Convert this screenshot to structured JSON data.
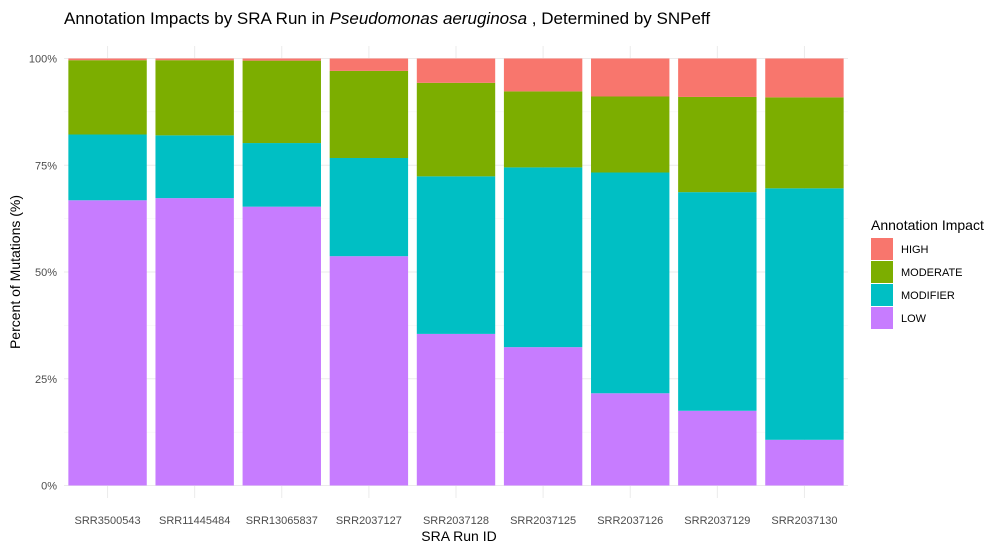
{
  "chart_data": {
    "type": "bar",
    "stacked": true,
    "percent": true,
    "title_plain_1": "Annotation Impacts by SRA Run in ",
    "title_italic": "Pseudomonas aeruginosa",
    "title_plain_2": " , Determined by SNPeff",
    "xlabel": "SRA Run ID",
    "ylabel": "Percent of Mutations (%)",
    "ylim": [
      0,
      100
    ],
    "yticks": [
      "0%",
      "25%",
      "50%",
      "75%",
      "100%"
    ],
    "categories": [
      "SRR3500543",
      "SRR11445484",
      "SRR13065837",
      "SRR2037127",
      "SRR2037128",
      "SRR2037125",
      "SRR2037126",
      "SRR2037129",
      "SRR2037130"
    ],
    "series": [
      {
        "name": "LOW",
        "color": "#C77CFF",
        "values": [
          66.8,
          67.3,
          65.3,
          53.7,
          35.5,
          32.4,
          21.6,
          17.5,
          10.7
        ]
      },
      {
        "name": "MODIFIER",
        "color": "#00BFC4",
        "values": [
          15.4,
          14.7,
          14.9,
          23.0,
          36.9,
          42.1,
          51.7,
          51.2,
          58.9
        ]
      },
      {
        "name": "MODERATE",
        "color": "#7CAE00",
        "values": [
          17.4,
          17.6,
          19.3,
          20.4,
          21.9,
          17.8,
          17.8,
          22.3,
          21.3
        ]
      },
      {
        "name": "HIGH",
        "color": "#F8766D",
        "values": [
          0.4,
          0.4,
          0.5,
          2.9,
          5.7,
          7.7,
          8.9,
          9.0,
          9.1
        ]
      }
    ],
    "legend": {
      "title": "Annotation Impact",
      "placement": "right",
      "order": [
        "HIGH",
        "MODERATE",
        "MODIFIER",
        "LOW"
      ]
    },
    "grid": true,
    "panel_background": "#ffffff",
    "grid_color": "#ebebeb"
  }
}
